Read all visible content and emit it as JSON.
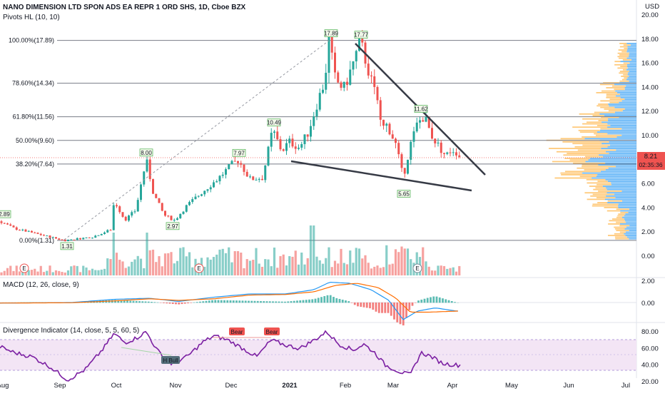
{
  "header": {
    "symbol_line": "NANO DIMENSION LTD SPON ADS EA REPR 1 ORD SHS, 1D, Cboe BZX",
    "indicator": "Pivots HL (10, 10)",
    "currency": "USD"
  },
  "colors": {
    "up": "#26a69a",
    "down": "#ef5350",
    "fib_line": "#787b86",
    "macd": "#2196f3",
    "signal": "#ff6d00",
    "rsi": "#7b1fa2",
    "rsi_band": "#f3e5f5",
    "vp_up": "#42a5f5",
    "vp_down": "#ffb74d",
    "price_tag": "#ef5350"
  },
  "price_axis": {
    "ticks": [
      "20.00",
      "18.00",
      "16.00",
      "14.00",
      "12.00",
      "10.00",
      "8.00",
      "6.00",
      "4.00",
      "2.00",
      "0.00"
    ],
    "last_price": "8.21",
    "countdown": "02:35:36"
  },
  "fib_levels": [
    {
      "label": "100.00%(17.89)",
      "value": 17.89
    },
    {
      "label": "78.60%(14.34)",
      "value": 14.34
    },
    {
      "label": "61.80%(11.56)",
      "value": 11.56
    },
    {
      "label": "50.00%(9.60)",
      "value": 9.6
    },
    {
      "label": "38.20%(7.64)",
      "value": 7.64
    },
    {
      "label": "0.00%(1.31)",
      "value": 1.31
    }
  ],
  "pivot_labels": [
    "2.89",
    "1.31",
    "8.00",
    "2.97",
    "7.97",
    "10.49",
    "17.89",
    "17.77",
    "11.62",
    "5.65"
  ],
  "time_axis": [
    "Aug",
    "Sep",
    "Oct",
    "Nov",
    "Dec",
    "2021",
    "Feb",
    "Mar",
    "Apr",
    "May",
    "Jun",
    "Jul"
  ],
  "earnings_markers": [
    "E",
    "E",
    "E"
  ],
  "macd_panel": {
    "title": "MACD (12, 26, close, 9)",
    "ticks": [
      "2.00",
      "0.00"
    ]
  },
  "rsi_panel": {
    "title": "Divergence Indicator (14, close, 5, 5, 60, 5)",
    "ticks": [
      "80.00",
      "60.00",
      "40.00",
      "20.00"
    ],
    "labels": [
      "Bear",
      "Bear",
      "H Bull"
    ]
  },
  "chart_data": {
    "type": "candlestick",
    "title": "NANO DIMENSION LTD SPON ADS EA REPR 1 ORD SHS, 1D, Cboe BZX",
    "ylim": [
      0,
      20
    ],
    "price_key_points": [
      {
        "x": "Aug",
        "y": 2.89
      },
      {
        "x": "Sep",
        "y": 1.31
      },
      {
        "x": "Oct",
        "y": 8.0
      },
      {
        "x": "Nov",
        "y": 2.97
      },
      {
        "x": "Dec",
        "y": 7.97
      },
      {
        "x": "2021",
        "y": 10.49
      },
      {
        "x": "Feb",
        "y": 17.89
      },
      {
        "x": "Feb",
        "y": 17.77
      },
      {
        "x": "Mar",
        "y": 11.62
      },
      {
        "x": "Mar",
        "y": 5.65
      },
      {
        "x": "Apr",
        "y": 8.21
      }
    ],
    "rsi_ylim": [
      20,
      80
    ],
    "macd_ylim": [
      -2,
      2
    ]
  }
}
